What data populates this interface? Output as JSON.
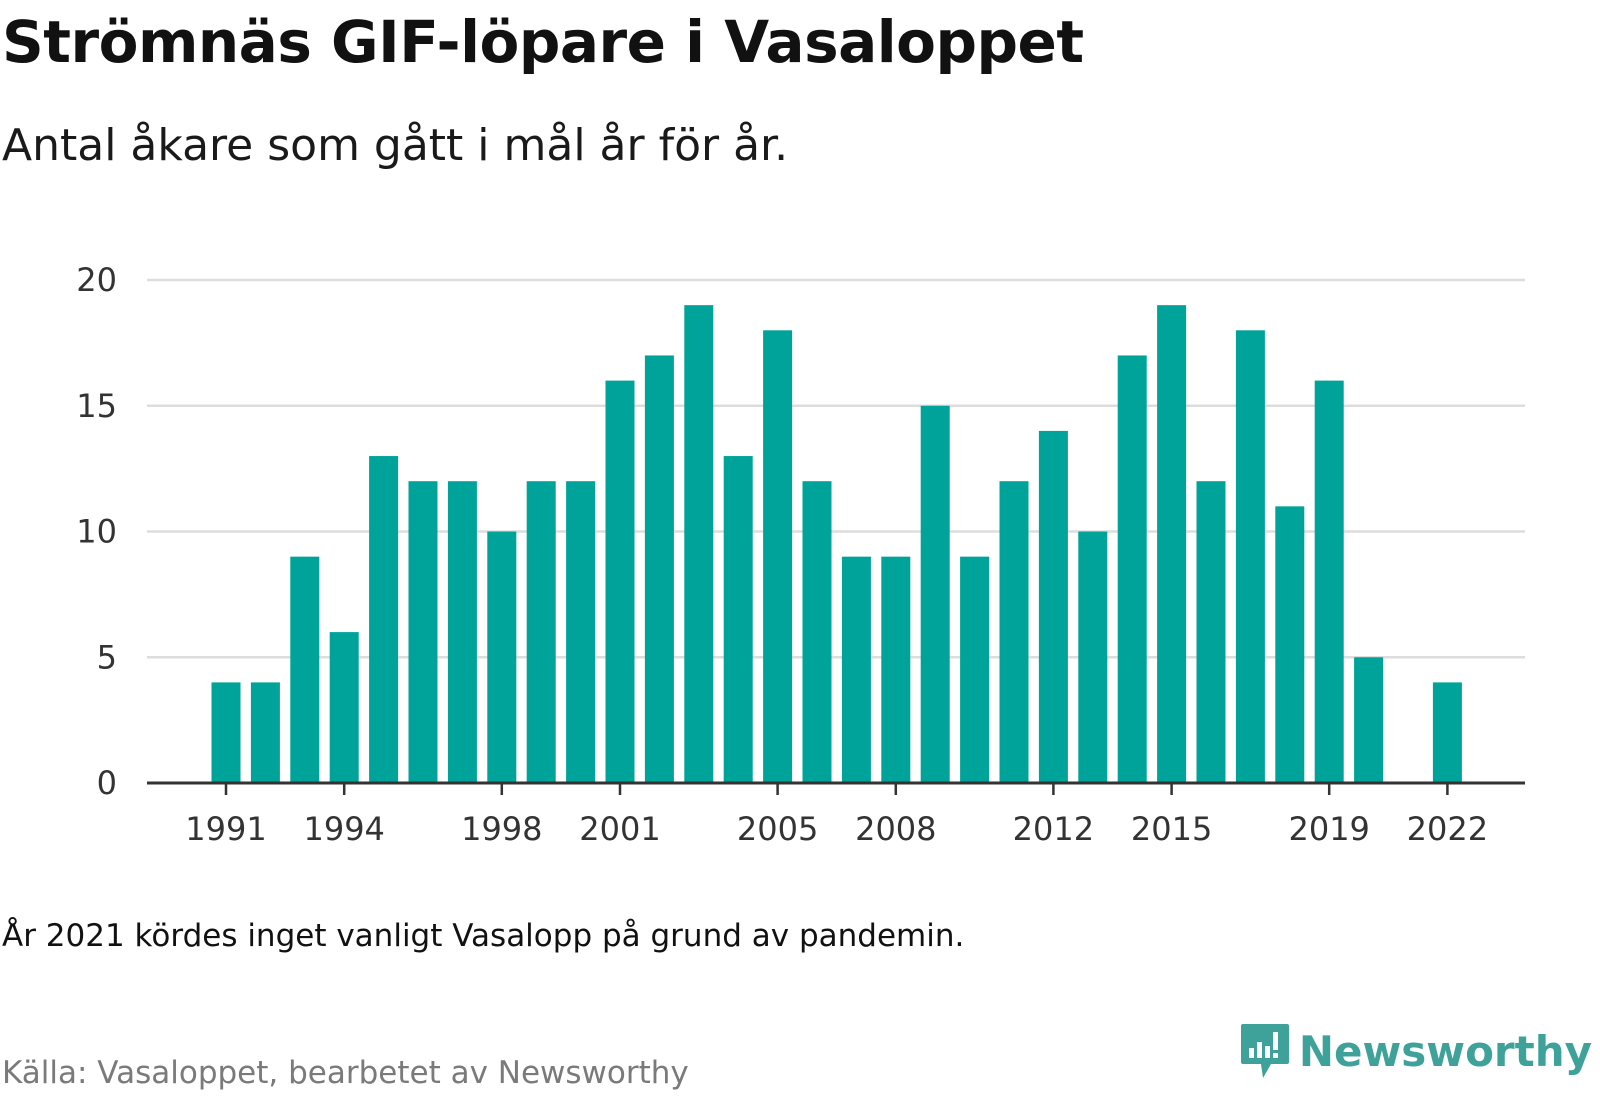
{
  "title": "Strömnäs GIF-löpare i Vasaloppet",
  "subtitle": "Antal åkare som gått i mål år för år.",
  "note": "År 2021 kördes inget vanligt Vasalopp på grund av pandemin.",
  "source": "Källa: Vasaloppet, bearbetet av Newsworthy",
  "logo": {
    "text": "Newsworthy",
    "icon": "bar-chart-bubble-icon"
  },
  "colors": {
    "bar": "#00a39a",
    "grid": "#dddddd",
    "axis": "#333333",
    "logo": "#3ea29a"
  },
  "chart_data": {
    "type": "bar",
    "categories": [
      1991,
      1992,
      1993,
      1994,
      1995,
      1996,
      1997,
      1998,
      1999,
      2000,
      2001,
      2002,
      2003,
      2004,
      2005,
      2006,
      2007,
      2008,
      2009,
      2010,
      2011,
      2012,
      2013,
      2014,
      2015,
      2016,
      2017,
      2018,
      2019,
      2020,
      2021,
      2022
    ],
    "values": [
      4,
      4,
      9,
      6,
      13,
      12,
      12,
      10,
      12,
      12,
      16,
      17,
      19,
      13,
      18,
      12,
      9,
      9,
      15,
      9,
      12,
      14,
      10,
      17,
      19,
      12,
      18,
      11,
      16,
      5,
      null,
      4
    ],
    "x_tick_labels": [
      1991,
      1994,
      1998,
      2001,
      2005,
      2008,
      2012,
      2015,
      2019,
      2022
    ],
    "y_ticks": [
      0,
      5,
      10,
      15,
      20
    ],
    "ylim": [
      0,
      20
    ],
    "xlabel": "",
    "ylabel": "",
    "grid": true,
    "legend": "none"
  }
}
